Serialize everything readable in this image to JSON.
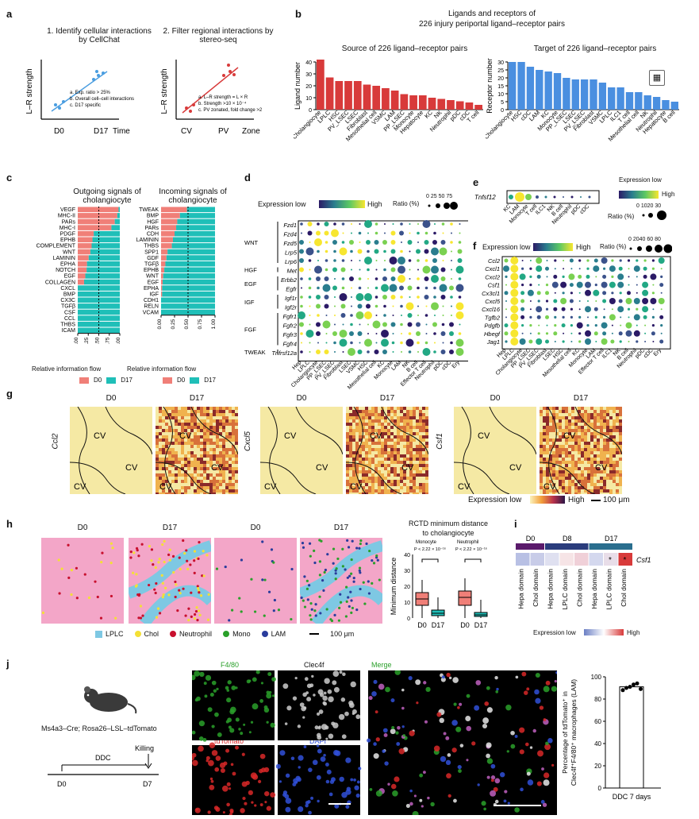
{
  "panels": {
    "a": {
      "label": "a",
      "step1_title": "1. Identify cellular interactions by CellChat",
      "step2_title": "2. Filter regional interactions by stereo-seq",
      "ylabel": "L–R strength",
      "step1_x": [
        "D0",
        "D17",
        "Time"
      ],
      "step2_x": [
        "CV",
        "PV",
        "Zone"
      ],
      "step1_notes": [
        "a. Exp. ratio > 25%",
        "b. Overall cell–cell interactions",
        "c. D17 specific"
      ],
      "step2_notes": [
        "a. L–R strength = L × R",
        "b. Strength >10 × 10⁻⁴",
        "c. PV zonated, fold change >2"
      ]
    },
    "b": {
      "label": "b",
      "title_line1": "Ligands and receptors of",
      "title_line2": "226 injury periportal ligand–receptor pairs",
      "left_title": "Source of 226 ligand–receptor pairs",
      "right_title": "Target of 226 ligand–receptor pairs"
    },
    "c": {
      "label": "c",
      "left_title": "Outgoing signals of cholangiocyte",
      "right_title": "Incoming signals of cholangiocyte",
      "xlabel": "Relative information flow",
      "legend": [
        "D0",
        "D17"
      ],
      "ticks": [
        "0.00",
        "0.25",
        "0.50",
        "0.75",
        "1.00"
      ]
    },
    "d": {
      "label": "d",
      "legend_low": "Expression low",
      "legend_high": "High",
      "ratio_label": "Ratio (%)",
      "ratio_ticks": [
        "0",
        "25",
        "50",
        "75"
      ],
      "genes": [
        "Fzd1",
        "Fzd4",
        "Fzd5",
        "Lrp5",
        "Lrp6",
        "Met",
        "Erbb2",
        "Egfr",
        "Igf1r",
        "Igf2r",
        "Fgfr1",
        "Fgfr2",
        "Fgfr3",
        "Fgfr4",
        "Tnfrsf12a"
      ],
      "groups": [
        "WNT",
        "HGF",
        "EGF",
        "IGF",
        "FGF",
        "TWEAK"
      ],
      "cells": [
        "Hep",
        "LPLC",
        "Cholangiocyte",
        "PP_LSEC",
        "PV_LSEC",
        "Fibroblast",
        "LSEC",
        "VSMC",
        "HSC",
        "Mesothelial cell",
        "KC",
        "Monocyte",
        "LAM",
        "NK",
        "B cell",
        "Effector T cell",
        "Neutrophil",
        "pDC",
        "cDC",
        "Ery"
      ]
    },
    "e": {
      "label": "e",
      "gene": "Tnfsf12",
      "cells": [
        "KC",
        "LAM",
        "Monocyte",
        "T cell",
        "ILC1",
        "NK",
        "B cell",
        "Neutrophil",
        "pDC",
        "cDC"
      ],
      "legend_title": "Expression low",
      "legend_high": "High",
      "ratio_label": "Ratio (%)",
      "ratio_ticks": [
        "0",
        "10",
        "20",
        "30"
      ]
    },
    "f": {
      "label": "f",
      "legend_low": "Expression low",
      "legend_high": "High",
      "ratio_label": "Ratio (%)",
      "ratio_ticks": [
        "0",
        "20",
        "40",
        "60",
        "80"
      ],
      "genes": [
        "Ccl2",
        "Cxcl1",
        "Cxcl2",
        "Csf1",
        "Cx3cl1",
        "Cxcl5",
        "Cxcl16",
        "Tgfb2",
        "Pdgfb",
        "Hbegf",
        "Jag1"
      ],
      "cells": [
        "Hep",
        "LPLC",
        "Cholangiocyte",
        "PP_LSEC",
        "PV_LSEC",
        "Fibroblast",
        "LSEC",
        "HSC",
        "Mesothelial cell",
        "KC",
        "Monocyte",
        "LAM",
        "Effector T cell",
        "ILC1",
        "NK",
        "B cell",
        "Neutrophil",
        "pDC",
        "cDC",
        "Ery"
      ]
    },
    "g": {
      "label": "g",
      "genes": [
        "Ccl2",
        "Cxcl5",
        "Csf1"
      ],
      "timepoints": [
        "D0",
        "D17"
      ],
      "region_label": "CV",
      "legend_low": "Expression low",
      "legend_high": "High",
      "scale": "100 μm"
    },
    "h": {
      "label": "h",
      "timepoints": [
        "D0",
        "D17",
        "D0",
        "D17"
      ],
      "legend": [
        "LPLC",
        "Chol",
        "Neutrophil",
        "Mono",
        "LAM"
      ],
      "scale": "100 μm",
      "box_title_line1": "RCTD minimum distance",
      "box_title_line2": "to cholangiocyte",
      "box_ylabel": "Minimum distance",
      "box_groups": [
        "Monocyte",
        "Neutrophil"
      ],
      "box_pvalue": "P < 2.22 × 10⁻¹⁶",
      "box_x": [
        "D0",
        "D17",
        "D0",
        "D17"
      ],
      "box_yticks": [
        "0",
        "10",
        "20",
        "30",
        "40"
      ]
    },
    "i": {
      "label": "i",
      "timepoints": [
        "D0",
        "D8",
        "D17"
      ],
      "gene": "Csf1",
      "domains": [
        "Hepa domain",
        "Chol domain",
        "Hepa domain",
        "LPLC domain",
        "Chol domain",
        "Hepa domain",
        "LPLC domain",
        "Chol domain"
      ],
      "legend_low": "Expression low",
      "legend_high": "High",
      "marker": "*"
    },
    "j": {
      "label": "j",
      "mouse_label": "Ms4a3–Cre; Rosa26–LSL–tdTomato",
      "treatment": "DDC",
      "endpoint": "Killing",
      "t0": "D0",
      "t1": "D7",
      "channels": [
        "F4/80",
        "Clec4f",
        "tdTomato",
        "DAPI",
        "Merge"
      ],
      "bar_ylabel": "Percentage of tdTomato⁺ in Clec4f⁺F4/80⁺ macrophages (LAM)",
      "bar_x": "DDC 7 days",
      "bar_yticks": [
        "0",
        "20",
        "40",
        "60",
        "80",
        "100"
      ]
    }
  },
  "chart_data": [
    {
      "type": "bar",
      "title": "Source of 226 ligand–receptor pairs",
      "ylabel": "Ligand number",
      "categories": [
        "Cholangiocyte",
        "LPLC",
        "HSC",
        "PV_LSEC",
        "LSEC",
        "Fibroblast",
        "Mesothelial cell",
        "VSMC",
        "LAM",
        "PP_LSEC",
        "Monocyte",
        "Hepatocyte",
        "KC",
        "NK",
        "Neutrophil",
        "pDC",
        "cDC",
        "T cell"
      ],
      "values": [
        42,
        27,
        24,
        24,
        24,
        21,
        20,
        18,
        16,
        13,
        12,
        12,
        10,
        9,
        8,
        7,
        6,
        4
      ],
      "ylim": [
        0,
        40
      ],
      "yticks": [
        0,
        10,
        20,
        30,
        40
      ],
      "color": "#d83a3a"
    },
    {
      "type": "bar",
      "title": "Target of 226 ligand–receptor pairs",
      "ylabel": "Receptor number",
      "categories": [
        "Cholangiocyte",
        "HSC",
        "cDC",
        "LAM",
        "KC",
        "Monocyte",
        "PP_LSEC",
        "LSEC",
        "PV_LSEC",
        "Fibroblast",
        "VSMC",
        "LPLC",
        "ILC1",
        "T cell",
        "Mesothelial cell",
        "NK",
        "Neutrophil",
        "Hepatocyte",
        "B cell"
      ],
      "values": [
        30,
        30,
        27,
        25,
        24,
        23,
        20,
        19,
        19,
        19,
        17,
        14,
        14,
        11,
        11,
        9,
        8,
        6,
        5
      ],
      "ylim": [
        0,
        30
      ],
      "yticks": [
        0,
        5,
        10,
        15,
        20,
        25,
        30
      ],
      "color": "#4a8fe0"
    },
    {
      "type": "bar",
      "title": "Outgoing signals of cholangiocyte",
      "xlabel": "Relative information flow",
      "categories": [
        "VEGF",
        "MHC-II",
        "PARs",
        "MHC-I",
        "PDGF",
        "EPHB",
        "COMPLEMENT",
        "WNT",
        "LAMININ",
        "EPHA",
        "NOTCH",
        "EGF",
        "COLLAGEN",
        "CXCL",
        "BMP",
        "CX3C",
        "TGFβ",
        "CSF",
        "CCL",
        "THBS",
        "ICAM"
      ],
      "series": [
        {
          "name": "D0",
          "values": [
            0.97,
            0.94,
            0.88,
            0.8,
            0.38,
            0.35,
            0.33,
            0.3,
            0.26,
            0.22,
            0.21,
            0.18,
            0.15,
            0.0,
            0.0,
            0.0,
            0.0,
            0.0,
            0.0,
            0.0,
            0.0
          ]
        },
        {
          "name": "D17",
          "values": [
            0.03,
            0.06,
            0.12,
            0.2,
            0.62,
            0.65,
            0.67,
            0.7,
            0.74,
            0.78,
            0.79,
            0.82,
            0.85,
            1.0,
            1.0,
            1.0,
            1.0,
            1.0,
            1.0,
            1.0,
            1.0
          ]
        }
      ],
      "xlim": [
        0,
        1
      ]
    },
    {
      "type": "bar",
      "title": "Incoming signals of cholangiocyte",
      "xlabel": "Relative information flow",
      "categories": [
        "TWEAK",
        "BMP",
        "HGF",
        "PARs",
        "CDH",
        "LAMININ",
        "THBS",
        "SPP1",
        "GDF",
        "TGFβ",
        "EPHB",
        "WNT",
        "EGF",
        "EPHA",
        "IGF",
        "CDH1",
        "RELN",
        "VCAM"
      ],
      "series": [
        {
          "name": "D0",
          "values": [
            0.48,
            0.35,
            0.3,
            0.28,
            0.25,
            0.22,
            0.2,
            0.12,
            0.1,
            0.08,
            0.06,
            0.04,
            0.03,
            0.02,
            0.02,
            0.0,
            0.0,
            0.0
          ]
        },
        {
          "name": "D17",
          "values": [
            0.52,
            0.65,
            0.7,
            0.72,
            0.75,
            0.78,
            0.8,
            0.88,
            0.9,
            0.92,
            0.94,
            0.96,
            0.97,
            0.98,
            0.98,
            1.0,
            1.0,
            1.0
          ]
        }
      ],
      "xlim": [
        0,
        1
      ]
    },
    {
      "type": "bar",
      "title": "",
      "ylabel": "Percentage of tdTomato⁺ in Clec4f⁺F4/80⁺ macrophages (LAM)",
      "categories": [
        "DDC 7 days"
      ],
      "values": [
        91
      ],
      "points": [
        88,
        90,
        91,
        93,
        94,
        89
      ],
      "ylim": [
        0,
        100
      ]
    }
  ]
}
